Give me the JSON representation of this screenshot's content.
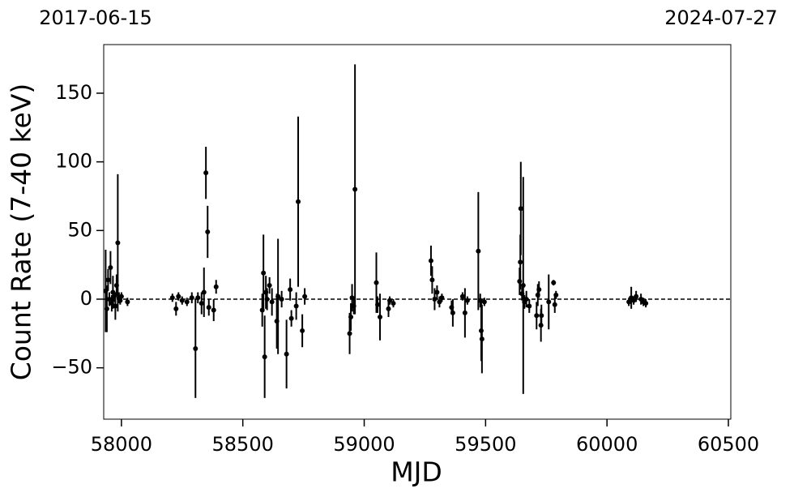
{
  "chart_data": {
    "type": "errorbar-scatter",
    "top_left_label": "2017-06-15",
    "top_right_label": "2024-07-27",
    "xlabel": "MJD",
    "ylabel": "Count Rate (7-40 keV)",
    "xlim": [
      57927,
      60510
    ],
    "ylim": [
      -87.4,
      185.4
    ],
    "xticks": [
      58000,
      58500,
      59000,
      59500,
      60000,
      60500
    ],
    "yticks": [
      {
        "value": -50,
        "label": "−50"
      },
      0,
      50,
      100,
      150
    ],
    "hline": 0,
    "color": "#000000",
    "x": [
      57935,
      57940,
      57945,
      57950,
      57955,
      57960,
      57965,
      57970,
      57975,
      57980,
      57985,
      57990,
      57995,
      58000,
      58025,
      58210,
      58225,
      58235,
      58250,
      58270,
      58290,
      58305,
      58315,
      58330,
      58340,
      58348,
      58355,
      58360,
      58380,
      58390,
      58580,
      58585,
      58590,
      58595,
      58600,
      58610,
      58620,
      58640,
      58645,
      58660,
      58680,
      58695,
      58700,
      58720,
      58728,
      58745,
      58755,
      58940,
      58945,
      58950,
      58957,
      58962,
      59050,
      59055,
      59065,
      59100,
      59105,
      59120,
      59275,
      59280,
      59290,
      59300,
      59310,
      59320,
      59360,
      59365,
      59405,
      59415,
      59425,
      59470,
      59478,
      59482,
      59485,
      59495,
      59640,
      59643,
      59645,
      59650,
      59655,
      59660,
      59668,
      59680,
      59710,
      59715,
      59720,
      59728,
      59730,
      59760,
      59780,
      59785,
      59790,
      60090,
      60100,
      60110,
      60120,
      60140,
      60150,
      60160
    ],
    "values": [
      6,
      -7,
      14,
      0,
      23,
      -3,
      5,
      2,
      -5,
      10,
      41,
      1,
      -1,
      2,
      -2,
      1,
      -7,
      2,
      -1,
      -2,
      1,
      -36,
      1,
      -3,
      5,
      92,
      49,
      -6,
      -8,
      9,
      -8,
      19,
      -42,
      5,
      0,
      10,
      -2,
      -16,
      2,
      0,
      -40,
      7,
      -14,
      -5,
      71,
      -23,
      2,
      -25,
      -13,
      1,
      -5,
      80,
      12,
      -4,
      -13,
      -7,
      -1,
      -3,
      28,
      14,
      0,
      5,
      -2,
      1,
      -6,
      -10,
      2,
      -10,
      -1,
      35,
      -1,
      -23,
      -29,
      -2,
      13,
      27,
      66,
      4,
      10,
      -2,
      0,
      -5,
      -12,
      3,
      7,
      -19,
      -12,
      -2,
      12,
      -4,
      3,
      -2,
      1,
      -1,
      2,
      0,
      -2,
      -3
    ],
    "errors": [
      30,
      17,
      8,
      5,
      12,
      6,
      12,
      4,
      10,
      8,
      50,
      4,
      3,
      3,
      3,
      3,
      5,
      3,
      3,
      3,
      4,
      36,
      4,
      8,
      18,
      19,
      19,
      6,
      8,
      5,
      12,
      28,
      30,
      12,
      8,
      6,
      10,
      20,
      42,
      6,
      25,
      8,
      6,
      10,
      62,
      12,
      6,
      15,
      10,
      10,
      6,
      91,
      22,
      6,
      17,
      6,
      3,
      3,
      11,
      10,
      8,
      5,
      4,
      3,
      5,
      10,
      3,
      18,
      3,
      43,
      5,
      22,
      25,
      3,
      10,
      20,
      34,
      5,
      79,
      5,
      6,
      5,
      10,
      8,
      6,
      12,
      8,
      20,
      2,
      6,
      3,
      3,
      8,
      3,
      4,
      4,
      3,
      3
    ]
  }
}
